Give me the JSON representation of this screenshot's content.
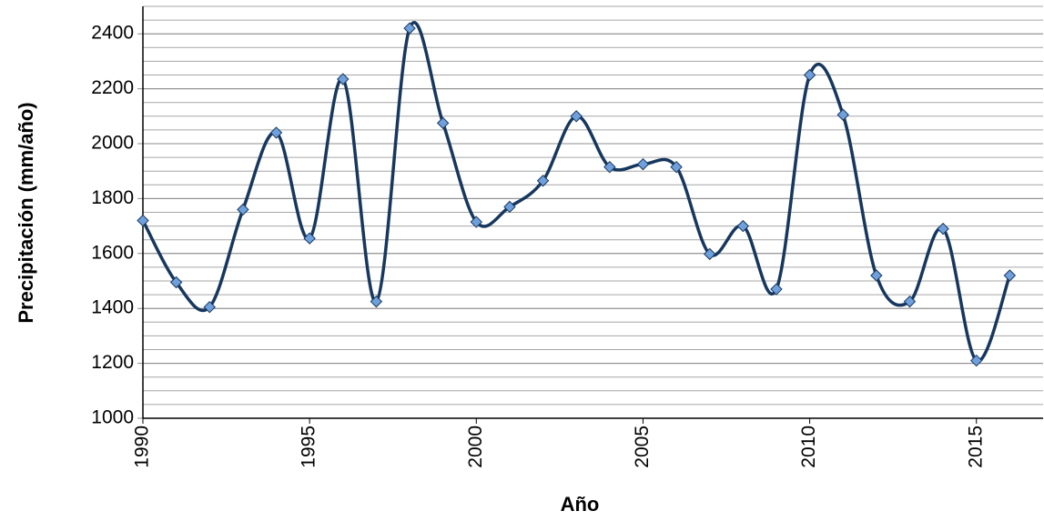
{
  "chart_data": {
    "type": "line",
    "x_label": "Año",
    "y_label": "Precipitación (mm/año)",
    "x": [
      1990,
      1991,
      1992,
      1993,
      1994,
      1995,
      1996,
      1997,
      1998,
      1999,
      2000,
      2001,
      2002,
      2003,
      2004,
      2005,
      2006,
      2007,
      2008,
      2009,
      2010,
      2011,
      2012,
      2013,
      2014,
      2015,
      2016
    ],
    "series": [
      {
        "color": "#17375e",
        "marker_color": "#6fa0dc",
        "values": [
          1720,
          1495,
          1405,
          1760,
          2040,
          1655,
          2235,
          1425,
          2420,
          2075,
          1715,
          1770,
          1865,
          2100,
          1915,
          1925,
          1915,
          1598,
          1700,
          1470,
          2250,
          2105,
          1520,
          1425,
          1690,
          1210,
          1520
        ]
      }
    ],
    "xlim": [
      1990,
      2017
    ],
    "xticks": [
      1990,
      1995,
      2000,
      2005,
      2010,
      2015
    ],
    "ylim": [
      1000,
      2500
    ],
    "yticks": [
      1000,
      1200,
      1400,
      1600,
      1800,
      2000,
      2200,
      2400
    ],
    "grid": true,
    "minor_grid_step": 50,
    "smooth": true
  }
}
